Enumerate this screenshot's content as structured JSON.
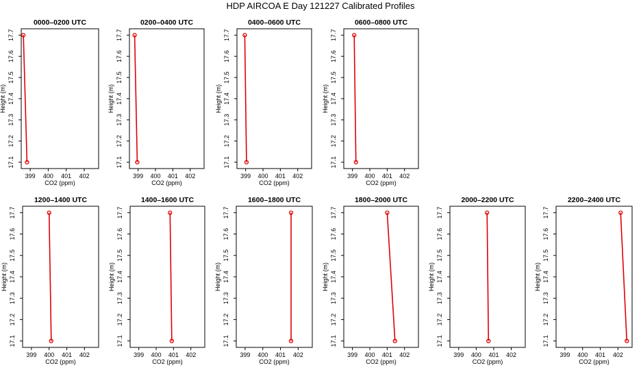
{
  "title": "HDP AIRCOA E  Day 121227  Calibrated Profiles",
  "colors": {
    "series": "#dd0000",
    "axis": "#000000"
  },
  "chart_data": [
    {
      "type": "line",
      "title": "0000–0200 UTC",
      "xlabel": "CO2 (ppm)",
      "ylabel": "Height (m)",
      "xlim": [
        398.5,
        402.8
      ],
      "ylim": [
        17.07,
        17.73
      ],
      "xticks": [
        399,
        400,
        401,
        402
      ],
      "yticks": [
        17.1,
        17.2,
        17.3,
        17.4,
        17.5,
        17.6,
        17.7
      ],
      "x": [
        398.62,
        398.82
      ],
      "y": [
        17.7,
        17.1
      ]
    },
    {
      "type": "line",
      "title": "0200–0400 UTC",
      "xlabel": "CO2 (ppm)",
      "ylabel": "Height (m)",
      "xlim": [
        398.5,
        402.8
      ],
      "ylim": [
        17.07,
        17.73
      ],
      "xticks": [
        399,
        400,
        401,
        402
      ],
      "yticks": [
        17.1,
        17.2,
        17.3,
        17.4,
        17.5,
        17.6,
        17.7
      ],
      "x": [
        398.8,
        398.95
      ],
      "y": [
        17.7,
        17.1
      ]
    },
    {
      "type": "line",
      "title": "0400–0600 UTC",
      "xlabel": "CO2 (ppm)",
      "ylabel": "Height (m)",
      "xlim": [
        398.5,
        402.8
      ],
      "ylim": [
        17.07,
        17.73
      ],
      "xticks": [
        399,
        400,
        401,
        402
      ],
      "yticks": [
        17.1,
        17.2,
        17.3,
        17.4,
        17.5,
        17.6,
        17.7
      ],
      "x": [
        398.95,
        399.05
      ],
      "y": [
        17.7,
        17.1
      ]
    },
    {
      "type": "line",
      "title": "0600–0800 UTC",
      "xlabel": "CO2 (ppm)",
      "ylabel": "Height (m)",
      "xlim": [
        398.5,
        402.8
      ],
      "ylim": [
        17.07,
        17.73
      ],
      "xticks": [
        399,
        400,
        401,
        402
      ],
      "yticks": [
        17.1,
        17.2,
        17.3,
        17.4,
        17.5,
        17.6,
        17.7
      ],
      "x": [
        399.1,
        399.2
      ],
      "y": [
        17.7,
        17.1
      ]
    },
    {
      "type": "line",
      "title": "1200–1400 UTC",
      "xlabel": "CO2 (ppm)",
      "ylabel": "Height (m)",
      "xlim": [
        398.5,
        402.8
      ],
      "ylim": [
        17.07,
        17.73
      ],
      "xticks": [
        399,
        400,
        401,
        402
      ],
      "yticks": [
        17.1,
        17.2,
        17.3,
        17.4,
        17.5,
        17.6,
        17.7
      ],
      "x": [
        400.0,
        400.12
      ],
      "y": [
        17.7,
        17.1
      ]
    },
    {
      "type": "line",
      "title": "1400–1600 UTC",
      "xlabel": "CO2 (ppm)",
      "ylabel": "Height (m)",
      "xlim": [
        398.5,
        402.8
      ],
      "ylim": [
        17.07,
        17.73
      ],
      "xticks": [
        399,
        400,
        401,
        402
      ],
      "yticks": [
        17.1,
        17.2,
        17.3,
        17.4,
        17.5,
        17.6,
        17.7
      ],
      "x": [
        400.8,
        400.9
      ],
      "y": [
        17.7,
        17.1
      ]
    },
    {
      "type": "line",
      "title": "1600–1800 UTC",
      "xlabel": "CO2 (ppm)",
      "ylabel": "Height (m)",
      "xlim": [
        398.5,
        402.8
      ],
      "ylim": [
        17.07,
        17.73
      ],
      "xticks": [
        399,
        400,
        401,
        402
      ],
      "yticks": [
        17.1,
        17.2,
        17.3,
        17.4,
        17.5,
        17.6,
        17.7
      ],
      "x": [
        401.6,
        401.6
      ],
      "y": [
        17.7,
        17.1
      ]
    },
    {
      "type": "line",
      "title": "1800–2000 UTC",
      "xlabel": "CO2 (ppm)",
      "ylabel": "Height (m)",
      "xlim": [
        398.5,
        402.8
      ],
      "ylim": [
        17.07,
        17.73
      ],
      "xticks": [
        399,
        400,
        401,
        402
      ],
      "yticks": [
        17.1,
        17.2,
        17.3,
        17.4,
        17.5,
        17.6,
        17.7
      ],
      "x": [
        401.0,
        401.45
      ],
      "y": [
        17.7,
        17.1
      ]
    },
    {
      "type": "line",
      "title": "2000–2200 UTC",
      "xlabel": "CO2 (ppm)",
      "ylabel": "Height (m)",
      "xlim": [
        398.5,
        402.8
      ],
      "ylim": [
        17.07,
        17.73
      ],
      "xticks": [
        399,
        400,
        401,
        402
      ],
      "yticks": [
        17.1,
        17.2,
        17.3,
        17.4,
        17.5,
        17.6,
        17.7
      ],
      "x": [
        400.62,
        400.7
      ],
      "y": [
        17.7,
        17.1
      ]
    },
    {
      "type": "line",
      "title": "2200–2400 UTC",
      "xlabel": "CO2 (ppm)",
      "ylabel": "Height (m)",
      "xlim": [
        398.5,
        402.8
      ],
      "ylim": [
        17.07,
        17.73
      ],
      "xticks": [
        399,
        400,
        401,
        402
      ],
      "yticks": [
        17.1,
        17.2,
        17.3,
        17.4,
        17.5,
        17.6,
        17.7
      ],
      "x": [
        402.15,
        402.5
      ],
      "y": [
        17.7,
        17.1
      ]
    }
  ]
}
